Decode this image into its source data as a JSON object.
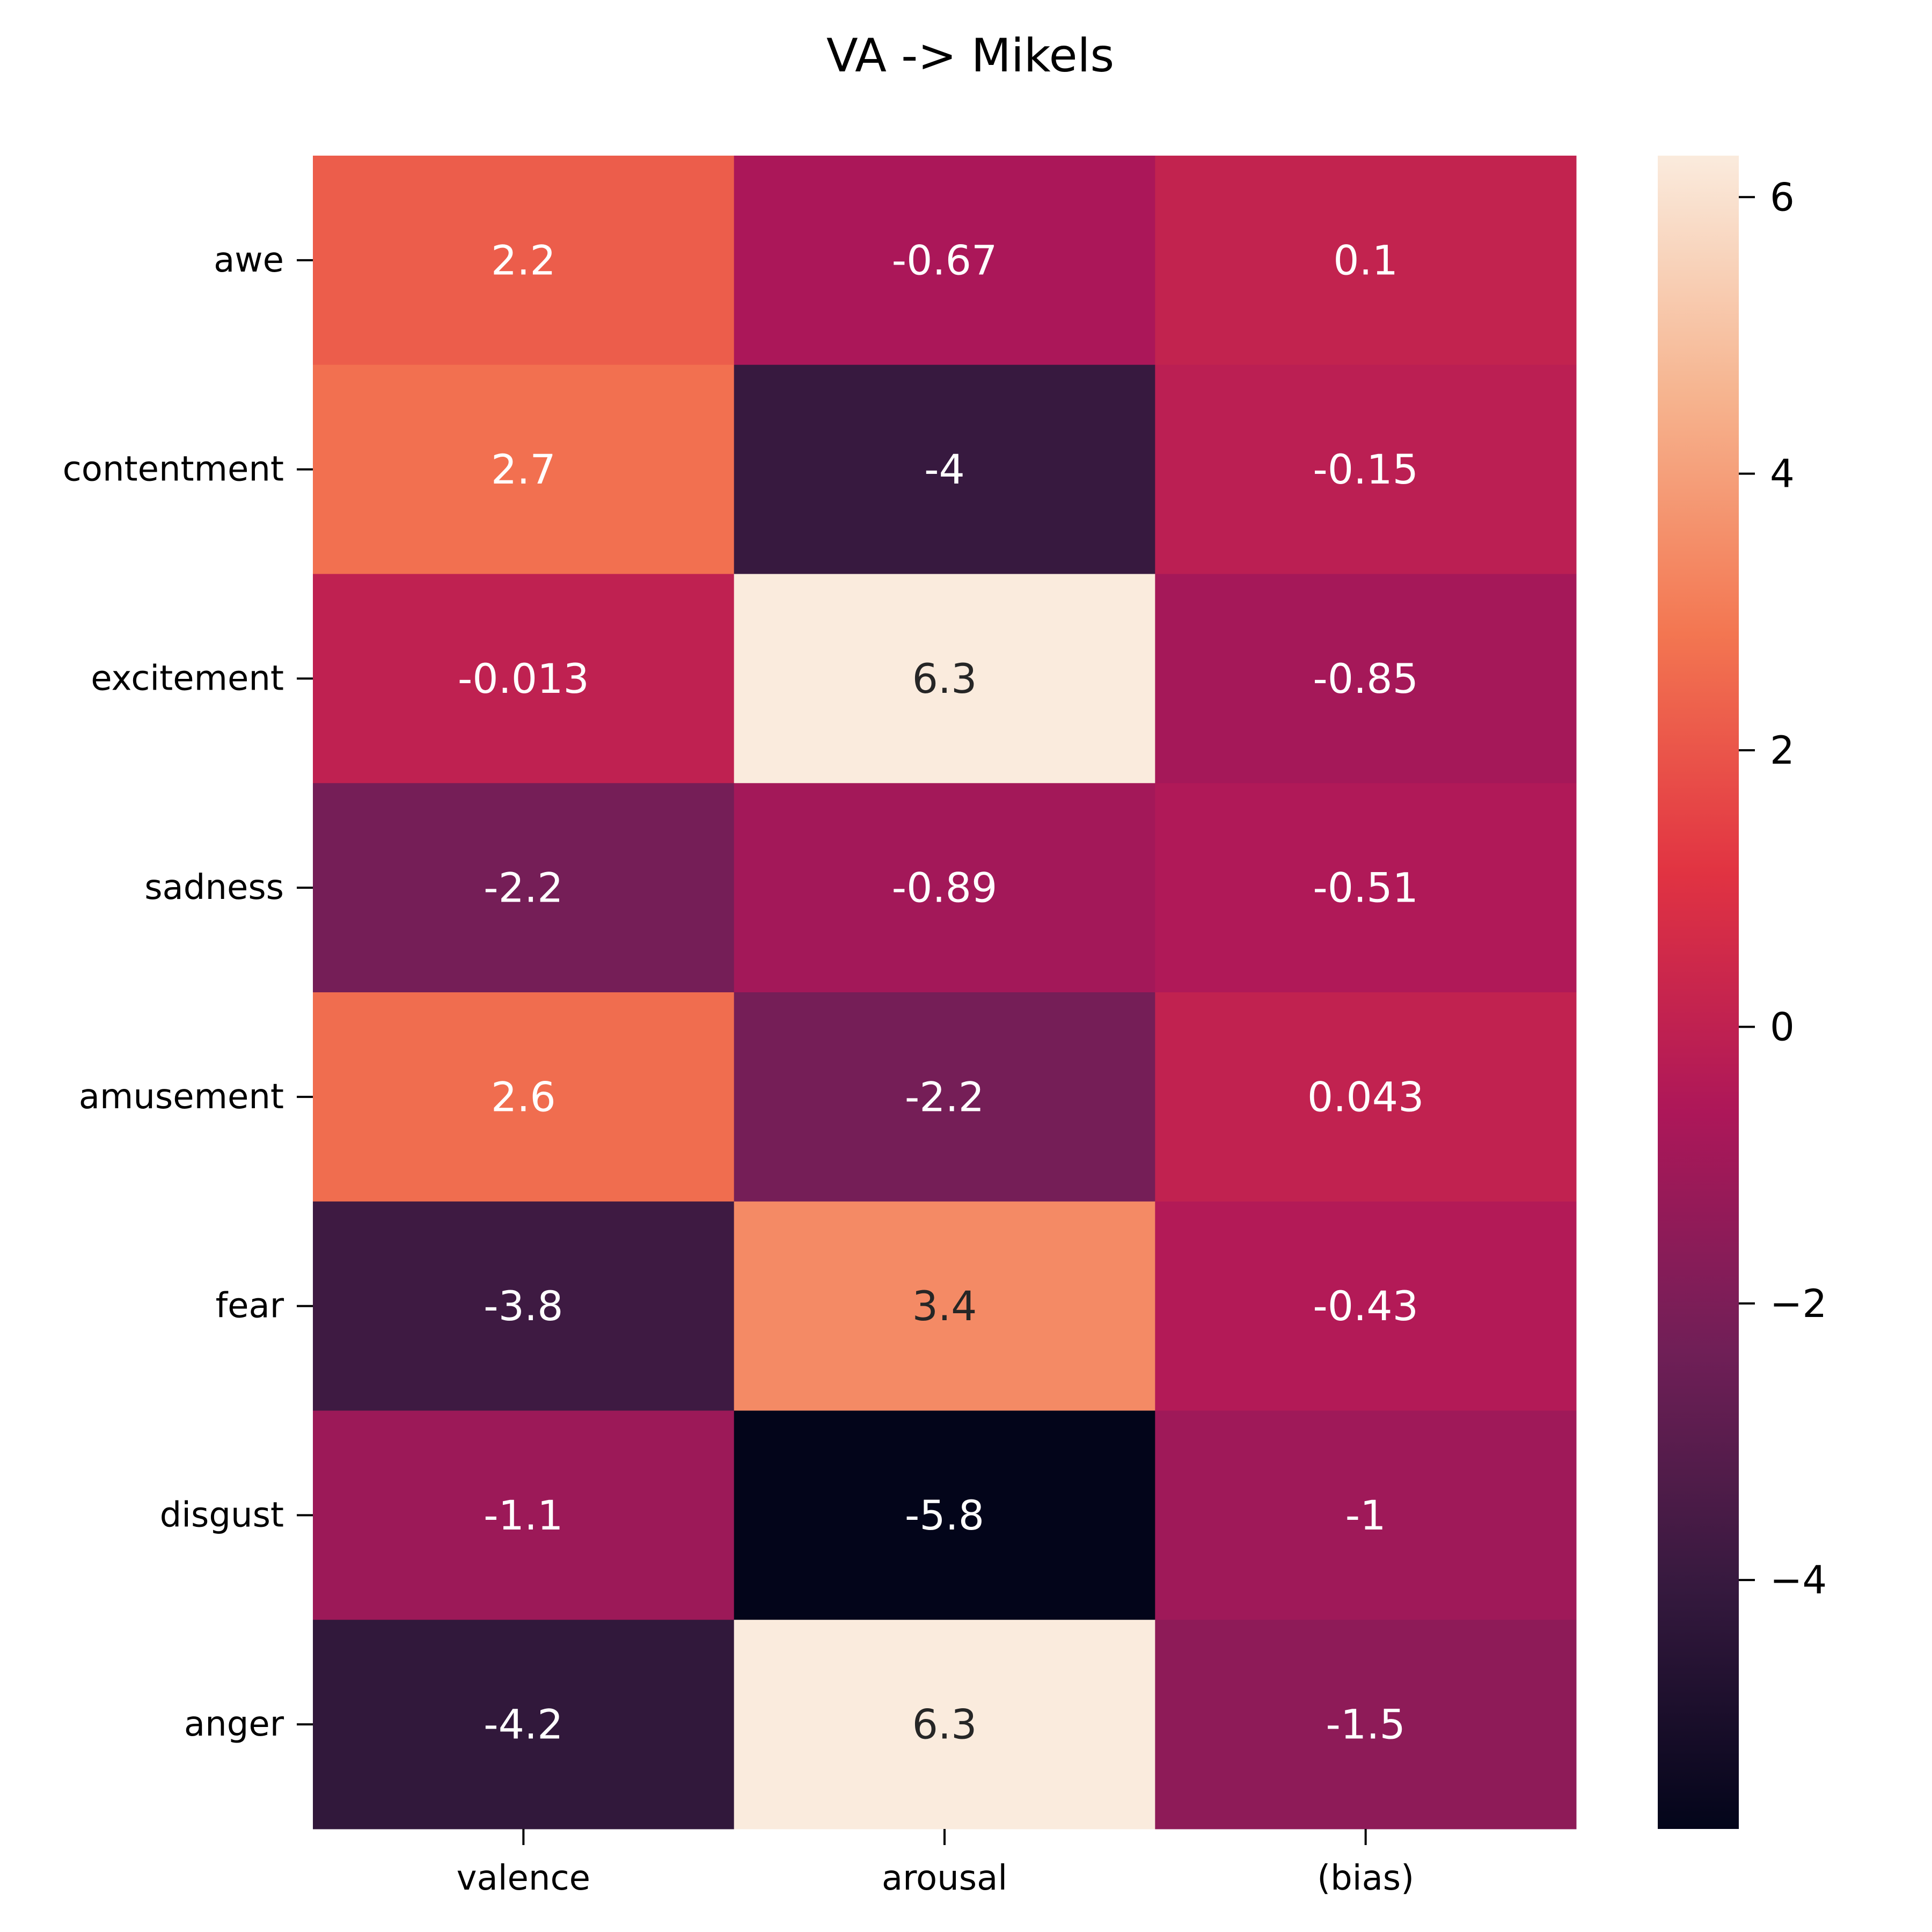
{
  "chart_data": {
    "type": "heatmap",
    "title": "VA -> Mikels",
    "rows": [
      "awe",
      "contentment",
      "excitement",
      "sadness",
      "amusement",
      "fear",
      "disgust",
      "anger"
    ],
    "columns": [
      "valence",
      "arousal",
      "(bias)"
    ],
    "values": [
      [
        2.2,
        -0.67,
        0.1
      ],
      [
        2.7,
        -4,
        -0.15
      ],
      [
        -0.013,
        6.3,
        -0.85
      ],
      [
        -2.2,
        -0.89,
        -0.51
      ],
      [
        2.6,
        -2.2,
        0.043
      ],
      [
        -3.8,
        3.4,
        -0.43
      ],
      [
        -1.1,
        -5.8,
        -1
      ],
      [
        -4.2,
        6.3,
        -1.5
      ]
    ],
    "annotations": [
      [
        "2.2",
        "-0.67",
        "0.1"
      ],
      [
        "2.7",
        "-4",
        "-0.15"
      ],
      [
        "-0.013",
        "6.3",
        "-0.85"
      ],
      [
        "-2.2",
        "-0.89",
        "-0.51"
      ],
      [
        "2.6",
        "-2.2",
        "0.043"
      ],
      [
        "-3.8",
        "3.4",
        "-0.43"
      ],
      [
        "-1.1",
        "-5.8",
        "-1"
      ],
      [
        "-4.2",
        "6.3",
        "-1.5"
      ]
    ],
    "colorbar": {
      "min": -5.8,
      "max": 6.3,
      "ticks": [
        6,
        4,
        2,
        0,
        -2,
        -4
      ],
      "tick_labels": [
        "6",
        "4",
        "2",
        "0",
        "−2",
        "−4"
      ],
      "colormap": "rocket",
      "colormap_stops": [
        "#03051a",
        "#35193e",
        "#701f57",
        "#ad1759",
        "#e13342",
        "#f37651",
        "#f6b48f",
        "#faebdd"
      ]
    },
    "annotation_colors": {
      "light_text": "#ffffff",
      "dark_text": "#262626"
    },
    "grid": false,
    "legend": "colorbar-right"
  }
}
